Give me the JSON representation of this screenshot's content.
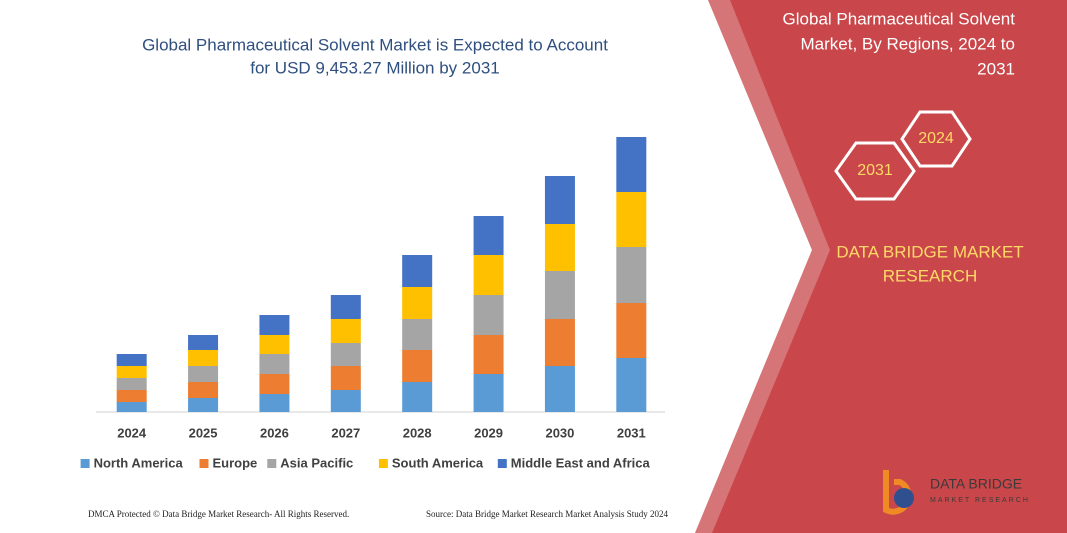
{
  "chart_data": {
    "type": "stacked-bar",
    "title": [
      "Global Pharmaceutical Solvent Market is Expected to Account",
      "for USD 9,453.27 Million by 2031"
    ],
    "categories": [
      "2024",
      "2025",
      "2026",
      "2027",
      "2028",
      "2029",
      "2030",
      "2031"
    ],
    "series": [
      {
        "name": "North America",
        "color": "#5b9bd5",
        "values": [
          10,
          14,
          18,
          22,
          30,
          38,
          46,
          54
        ]
      },
      {
        "name": "Europe",
        "color": "#ed7d31",
        "values": [
          12,
          16,
          20,
          24,
          32,
          39,
          47,
          55
        ]
      },
      {
        "name": "Asia Pacific",
        "color": "#a5a5a5",
        "values": [
          12,
          16,
          20,
          23,
          31,
          40,
          48,
          56
        ]
      },
      {
        "name": "South America",
        "color": "#ffc000",
        "values": [
          12,
          16,
          19,
          24,
          32,
          40,
          47,
          55
        ]
      },
      {
        "name": "Middle East and Africa",
        "color": "#4472c4",
        "values": [
          12,
          15,
          20,
          24,
          32,
          39,
          48,
          55
        ]
      }
    ],
    "legend": "bottom"
  },
  "panel": {
    "heading": [
      "Global Pharmaceutical Solvent",
      "Market, By Regions, 2024 to",
      "2031"
    ],
    "hex_top": "2024",
    "hex_bottom": "2031",
    "brand": [
      "DATA BRIDGE MARKET",
      "RESEARCH"
    ],
    "logo": "DATA BRIDGE",
    "logo_sub": "MARKET RESEARCH"
  },
  "footer": {
    "left": "DMCA Protected © Data Bridge Market Research- All Rights Reserved.",
    "right": "Source: Data Bridge Market Research Market Analysis Study 2024"
  }
}
